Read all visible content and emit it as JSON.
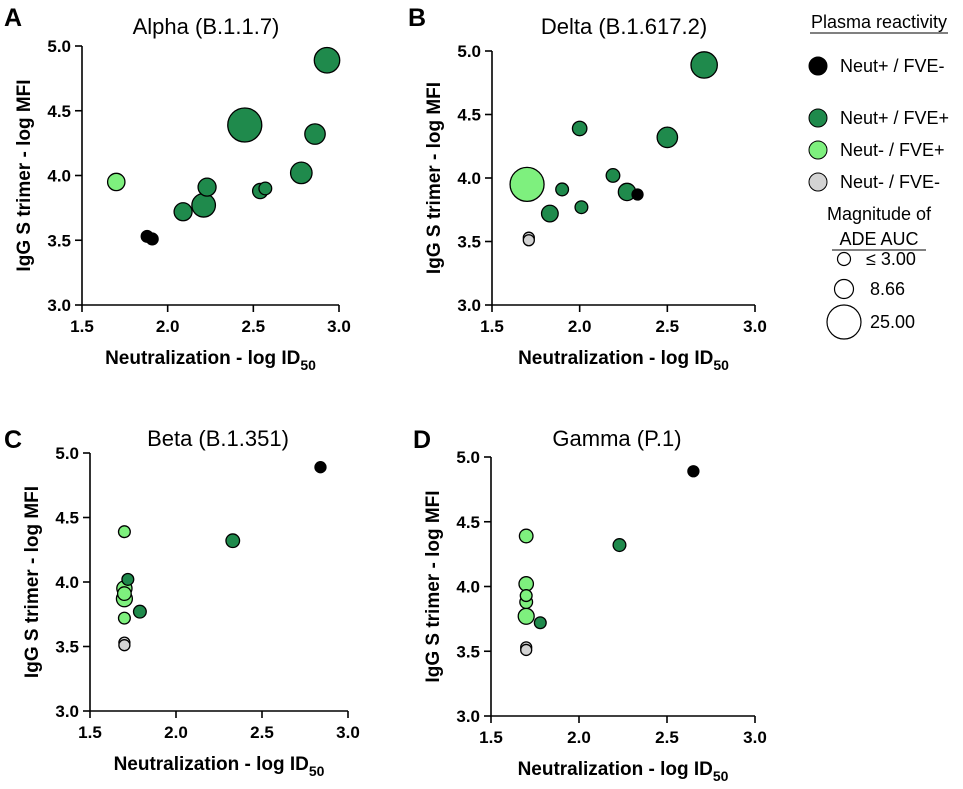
{
  "legend": {
    "title": "Plasma reactivity",
    "groups": [
      {
        "key": "np_fn",
        "label": "Neut+ / FVE-",
        "color": "#000000"
      },
      {
        "key": "np_fp",
        "label": "Neut+ / FVE+",
        "color": "#1f8a4c"
      },
      {
        "key": "nn_fp",
        "label": "Neut- / FVE+",
        "color": "#7ef07e"
      },
      {
        "key": "nn_fn",
        "label": "Neut- / FVE-",
        "color": "#d3d3d3"
      }
    ],
    "size_title_1": "Magnitude of",
    "size_title_2": "ADE AUC",
    "sizes": [
      {
        "label": "≤  3.00",
        "value": 3.0
      },
      {
        "label": "8.66",
        "value": 8.66
      },
      {
        "label": "25.00",
        "value": 25.0
      }
    ]
  },
  "chart_data": [
    {
      "type": "scatter",
      "letter": "A",
      "title": "Alpha (B.1.1.7)",
      "xlabel": "Neutralization - log ID",
      "xlabel_sub": "50",
      "ylabel": "IgG S trimer - log MFI",
      "xlim": [
        1.5,
        3.0
      ],
      "ylim": [
        3.0,
        5.0
      ],
      "xticks": [
        "1.5",
        "2.0",
        "2.5",
        "3.0"
      ],
      "yticks": [
        "3.0",
        "3.5",
        "4.0",
        "4.5",
        "5.0"
      ],
      "points": [
        {
          "x": 1.7,
          "y": 3.95,
          "group": "nn_fp",
          "ade": 6.5
        },
        {
          "x": 1.88,
          "y": 3.53,
          "group": "np_fn",
          "ade": 3.0
        },
        {
          "x": 1.91,
          "y": 3.51,
          "group": "np_fn",
          "ade": 3.0
        },
        {
          "x": 2.09,
          "y": 3.72,
          "group": "np_fp",
          "ade": 7.0
        },
        {
          "x": 2.21,
          "y": 3.77,
          "group": "np_fp",
          "ade": 12.0
        },
        {
          "x": 2.23,
          "y": 3.91,
          "group": "np_fp",
          "ade": 7.0
        },
        {
          "x": 2.45,
          "y": 4.39,
          "group": "np_fp",
          "ade": 25.0
        },
        {
          "x": 2.54,
          "y": 3.88,
          "group": "np_fp",
          "ade": 5.0
        },
        {
          "x": 2.57,
          "y": 3.9,
          "group": "np_fp",
          "ade": 3.5
        },
        {
          "x": 2.78,
          "y": 4.02,
          "group": "np_fp",
          "ade": 10.0
        },
        {
          "x": 2.86,
          "y": 4.32,
          "group": "np_fp",
          "ade": 9.0
        },
        {
          "x": 2.93,
          "y": 4.89,
          "group": "np_fp",
          "ade": 14.0
        }
      ]
    },
    {
      "type": "scatter",
      "letter": "B",
      "title": "Delta (B.1.617.2)",
      "xlabel": "Neutralization - log ID",
      "xlabel_sub": "50",
      "ylabel": "IgG S trimer - log MFI",
      "xlim": [
        1.5,
        3.0
      ],
      "ylim": [
        3.0,
        5.0
      ],
      "xticks": [
        "1.5",
        "2.0",
        "2.5",
        "3.0"
      ],
      "yticks": [
        "3.0",
        "3.5",
        "4.0",
        "4.5",
        "5.0"
      ],
      "points": [
        {
          "x": 1.7,
          "y": 3.95,
          "group": "nn_fp",
          "ade": 25.0
        },
        {
          "x": 1.71,
          "y": 3.53,
          "group": "nn_fn",
          "ade": 2.0
        },
        {
          "x": 1.71,
          "y": 3.51,
          "group": "nn_fn",
          "ade": 2.0
        },
        {
          "x": 1.83,
          "y": 3.72,
          "group": "np_fp",
          "ade": 6.0
        },
        {
          "x": 1.9,
          "y": 3.91,
          "group": "np_fp",
          "ade": 3.5
        },
        {
          "x": 2.0,
          "y": 4.39,
          "group": "np_fp",
          "ade": 4.5
        },
        {
          "x": 2.01,
          "y": 3.77,
          "group": "np_fp",
          "ade": 3.5
        },
        {
          "x": 2.19,
          "y": 4.02,
          "group": "np_fp",
          "ade": 4.0
        },
        {
          "x": 2.27,
          "y": 3.89,
          "group": "np_fp",
          "ade": 6.5
        },
        {
          "x": 2.33,
          "y": 3.87,
          "group": "np_fn",
          "ade": 2.0
        },
        {
          "x": 2.5,
          "y": 4.32,
          "group": "np_fp",
          "ade": 9.0
        },
        {
          "x": 2.71,
          "y": 4.89,
          "group": "np_fp",
          "ade": 15.0
        }
      ]
    },
    {
      "type": "scatter",
      "letter": "C",
      "title": "Beta (B.1.351)",
      "xlabel": "Neutralization - log ID",
      "xlabel_sub": "50",
      "ylabel": "IgG S trimer - log MFI",
      "xlim": [
        1.5,
        3.0
      ],
      "ylim": [
        3.0,
        5.0
      ],
      "xticks": [
        "1.5",
        "2.0",
        "2.5",
        "3.0"
      ],
      "yticks": [
        "3.0",
        "3.5",
        "4.0",
        "4.5",
        "5.0"
      ],
      "points": [
        {
          "x": 1.7,
          "y": 4.39,
          "group": "nn_fp",
          "ade": 3.0
        },
        {
          "x": 1.72,
          "y": 4.02,
          "group": "np_fp",
          "ade": 3.0
        },
        {
          "x": 1.7,
          "y": 3.95,
          "group": "nn_fp",
          "ade": 5.0
        },
        {
          "x": 1.7,
          "y": 3.91,
          "group": "nn_fp",
          "ade": 4.0
        },
        {
          "x": 1.7,
          "y": 3.87,
          "group": "nn_fp",
          "ade": 5.5
        },
        {
          "x": 1.79,
          "y": 3.77,
          "group": "np_fp",
          "ade": 3.5
        },
        {
          "x": 1.7,
          "y": 3.72,
          "group": "nn_fp",
          "ade": 3.0
        },
        {
          "x": 1.7,
          "y": 3.53,
          "group": "nn_fn",
          "ade": 2.0
        },
        {
          "x": 1.7,
          "y": 3.51,
          "group": "nn_fn",
          "ade": 2.0
        },
        {
          "x": 2.33,
          "y": 4.32,
          "group": "np_fp",
          "ade": 4.0
        },
        {
          "x": 2.84,
          "y": 4.89,
          "group": "np_fn",
          "ade": 2.0
        }
      ]
    },
    {
      "type": "scatter",
      "letter": "D",
      "title": "Gamma (P.1)",
      "xlabel": "Neutralization - log ID",
      "xlabel_sub": "50",
      "ylabel": "IgG S trimer - log MFI",
      "xlim": [
        1.5,
        3.0
      ],
      "ylim": [
        3.0,
        5.0
      ],
      "xticks": [
        "1.5",
        "2.0",
        "2.5",
        "3.0"
      ],
      "yticks": [
        "3.0",
        "3.5",
        "4.0",
        "4.5",
        "5.0"
      ],
      "points": [
        {
          "x": 1.7,
          "y": 4.39,
          "group": "nn_fp",
          "ade": 4.0
        },
        {
          "x": 1.7,
          "y": 4.02,
          "group": "nn_fp",
          "ade": 4.5
        },
        {
          "x": 1.7,
          "y": 3.93,
          "group": "nn_fp",
          "ade": 3.0
        },
        {
          "x": 1.7,
          "y": 3.88,
          "group": "nn_fp",
          "ade": 3.5
        },
        {
          "x": 1.7,
          "y": 3.77,
          "group": "nn_fp",
          "ade": 5.5
        },
        {
          "x": 1.78,
          "y": 3.72,
          "group": "np_fp",
          "ade": 3.0
        },
        {
          "x": 1.7,
          "y": 3.53,
          "group": "nn_fn",
          "ade": 2.0
        },
        {
          "x": 1.7,
          "y": 3.51,
          "group": "nn_fn",
          "ade": 2.0
        },
        {
          "x": 2.23,
          "y": 4.32,
          "group": "np_fp",
          "ade": 3.5
        },
        {
          "x": 2.65,
          "y": 4.89,
          "group": "np_fn",
          "ade": 2.0
        }
      ]
    }
  ]
}
